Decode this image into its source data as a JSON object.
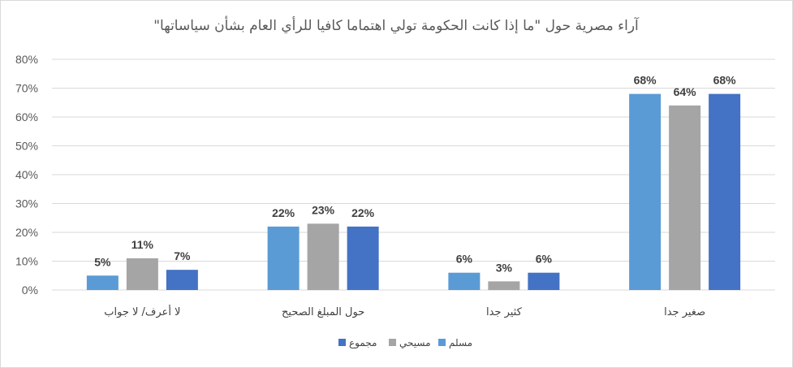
{
  "chart_data": {
    "type": "bar",
    "title": "آراء مصرية حول \"ما إذا كانت الحكومة تولي اهتماما كافيا للرأي العام بشأن سياساتها\"",
    "categories": [
      "لا أعرف/ لا جواب",
      "حول المبلغ الصحيح",
      "كثير جدا",
      "صغير جدا"
    ],
    "series": [
      {
        "name": "مسلم",
        "color": "#5b9bd5",
        "values": [
          5,
          22,
          6,
          68
        ]
      },
      {
        "name": "مسيحي",
        "color": "#a5a5a5",
        "values": [
          11,
          23,
          3,
          64
        ]
      },
      {
        "name": "مجموع",
        "color": "#4472c4",
        "values": [
          7,
          22,
          6,
          68
        ]
      }
    ],
    "ylim": [
      0,
      80
    ],
    "yticks": [
      "0%",
      "10%",
      "20%",
      "30%",
      "40%",
      "50%",
      "60%",
      "70%",
      "80%"
    ],
    "value_suffix": "%",
    "legend_position": "bottom",
    "grid": true,
    "gridline_color": "#d9d9d9"
  }
}
